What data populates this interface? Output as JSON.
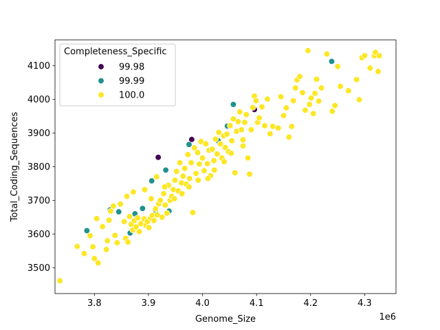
{
  "chart_data": {
    "type": "scatter",
    "xlabel": "Genome_Size",
    "ylabel": "Total_Coding_Sequences",
    "x_offset_text": "1e6",
    "xlim": [
      3.727,
      4.358
    ],
    "ylim": [
      3423,
      4177
    ],
    "x_ticks": [
      3.8,
      3.9,
      4.0,
      4.1,
      4.2,
      4.3
    ],
    "x_tick_labels": [
      "3.8",
      "3.9",
      "4.0",
      "4.1",
      "4.2",
      "4.3"
    ],
    "y_ticks": [
      3500,
      3600,
      3700,
      3800,
      3900,
      4000,
      4100
    ],
    "y_tick_labels": [
      "3500",
      "3600",
      "3700",
      "3800",
      "3900",
      "4000",
      "4100"
    ],
    "grid": false,
    "legend": {
      "title": "Completeness_Specific",
      "placement": "top-left",
      "entries": [
        {
          "label": "99.98",
          "color": "#440154"
        },
        {
          "label": "99.99",
          "color": "#21918c"
        },
        {
          "label": "100.0",
          "color": "#fde725"
        }
      ]
    },
    "series": [
      {
        "name": "99.98",
        "color": "#440154",
        "points": [
          [
            3.918,
            3828
          ],
          [
            3.98,
            3881
          ],
          [
            4.096,
            3970
          ]
        ]
      },
      {
        "name": "99.99",
        "color": "#21918c",
        "points": [
          [
            3.786,
            3610
          ],
          [
            3.829,
            3672
          ],
          [
            3.845,
            3666
          ],
          [
            3.866,
            3603
          ],
          [
            3.875,
            3660
          ],
          [
            3.889,
            3676
          ],
          [
            3.906,
            3758
          ],
          [
            3.913,
            3671
          ],
          [
            3.932,
            3790
          ],
          [
            3.938,
            3668
          ],
          [
            3.975,
            3866
          ],
          [
            4.029,
            3877
          ],
          [
            4.041,
            3857
          ],
          [
            4.046,
            3921
          ],
          [
            4.057,
            3985
          ],
          [
            4.239,
            4113
          ]
        ]
      },
      {
        "name": "100.0",
        "color": "#fde725",
        "points": [
          [
            3.736,
            3461
          ],
          [
            3.768,
            3563
          ],
          [
            3.781,
            3542
          ],
          [
            3.792,
            3595
          ],
          [
            3.797,
            3562
          ],
          [
            3.8,
            3527
          ],
          [
            3.807,
            3514
          ],
          [
            3.804,
            3646
          ],
          [
            3.815,
            3622
          ],
          [
            3.822,
            3554
          ],
          [
            3.824,
            3580
          ],
          [
            3.827,
            3641
          ],
          [
            3.83,
            3668
          ],
          [
            3.835,
            3683
          ],
          [
            3.838,
            3596
          ],
          [
            3.842,
            3574
          ],
          [
            3.848,
            3689
          ],
          [
            3.855,
            3637
          ],
          [
            3.858,
            3587
          ],
          [
            3.862,
            3576
          ],
          [
            3.865,
            3652
          ],
          [
            3.868,
            3629
          ],
          [
            3.871,
            3612
          ],
          [
            3.874,
            3640
          ],
          [
            3.877,
            3621
          ],
          [
            3.88,
            3648
          ],
          [
            3.883,
            3607
          ],
          [
            3.886,
            3631
          ],
          [
            3.892,
            3645
          ],
          [
            3.895,
            3626
          ],
          [
            3.898,
            3637
          ],
          [
            3.901,
            3619
          ],
          [
            3.904,
            3648
          ],
          [
            3.907,
            3655
          ],
          [
            3.91,
            3640
          ],
          [
            3.913,
            3675
          ],
          [
            3.916,
            3657
          ],
          [
            3.919,
            3690
          ],
          [
            3.922,
            3700
          ],
          [
            3.925,
            3650
          ],
          [
            3.928,
            3720
          ],
          [
            3.931,
            3686
          ],
          [
            3.934,
            3662
          ],
          [
            3.937,
            3745
          ],
          [
            3.94,
            3700
          ],
          [
            3.943,
            3712
          ],
          [
            3.946,
            3732
          ],
          [
            3.949,
            3760
          ],
          [
            3.952,
            3786
          ],
          [
            3.955,
            3728
          ],
          [
            3.958,
            3812
          ],
          [
            3.961,
            3752
          ],
          [
            3.964,
            3772
          ],
          [
            3.967,
            3795
          ],
          [
            3.97,
            3748
          ],
          [
            3.973,
            3836
          ],
          [
            3.976,
            3765
          ],
          [
            3.979,
            3812
          ],
          [
            3.982,
            3664
          ],
          [
            3.985,
            3856
          ],
          [
            3.988,
            3780
          ],
          [
            3.991,
            3842
          ],
          [
            3.994,
            3808
          ],
          [
            3.997,
            3875
          ],
          [
            4.0,
            3826
          ],
          [
            4.003,
            3788
          ],
          [
            4.006,
            3868
          ],
          [
            4.009,
            3809
          ],
          [
            4.012,
            3849
          ],
          [
            4.015,
            3773
          ],
          [
            4.018,
            3852
          ],
          [
            4.021,
            3818
          ],
          [
            4.024,
            3882
          ],
          [
            4.027,
            3838
          ],
          [
            4.03,
            3902
          ],
          [
            4.033,
            3868
          ],
          [
            4.036,
            3826
          ],
          [
            4.039,
            3892
          ],
          [
            4.042,
            3857
          ],
          [
            4.045,
            3897
          ],
          [
            4.048,
            3845
          ],
          [
            4.051,
            3922
          ],
          [
            4.054,
            3877
          ],
          [
            4.057,
            3942
          ],
          [
            4.06,
            3782
          ],
          [
            4.063,
            3905
          ],
          [
            4.066,
            3934
          ],
          [
            4.069,
            3963
          ],
          [
            4.072,
            3910
          ],
          [
            4.075,
            3880
          ],
          [
            4.078,
            3932
          ],
          [
            4.081,
            3955
          ],
          [
            4.084,
            3826
          ],
          [
            4.087,
            3778
          ],
          [
            4.09,
            3910
          ],
          [
            4.093,
            3976
          ],
          [
            4.096,
            4010
          ],
          [
            4.099,
            3996
          ],
          [
            4.102,
            3932
          ],
          [
            4.105,
            3945
          ],
          [
            4.11,
            3978
          ],
          [
            4.115,
            3922
          ],
          [
            4.12,
            4001
          ],
          [
            4.125,
            3898
          ],
          [
            4.13,
            3920
          ],
          [
            4.14,
            3915
          ],
          [
            4.145,
            4008
          ],
          [
            4.15,
            3952
          ],
          [
            4.155,
            3975
          ],
          [
            4.16,
            3888
          ],
          [
            4.165,
            3920
          ],
          [
            4.168,
            3996
          ],
          [
            4.172,
            4034
          ],
          [
            4.175,
            4058
          ],
          [
            4.18,
            4068
          ],
          [
            4.185,
            4020
          ],
          [
            4.19,
            3968
          ],
          [
            4.195,
            4145
          ],
          [
            4.198,
            3985
          ],
          [
            4.201,
            4004
          ],
          [
            4.205,
            3958
          ],
          [
            4.208,
            4018
          ],
          [
            4.211,
            4060
          ],
          [
            4.215,
            3995
          ],
          [
            4.22,
            4034
          ],
          [
            4.23,
            4135
          ],
          [
            4.24,
            3965
          ],
          [
            4.245,
            3982
          ],
          [
            4.25,
            4098
          ],
          [
            4.255,
            4039
          ],
          [
            4.27,
            4026
          ],
          [
            4.285,
            4059
          ],
          [
            4.29,
            3999
          ],
          [
            4.295,
            4124
          ],
          [
            4.3,
            4130
          ],
          [
            4.31,
            4093
          ],
          [
            4.318,
            4130
          ],
          [
            4.32,
            4140
          ],
          [
            4.325,
            4083
          ],
          [
            4.327,
            4130
          ],
          [
            3.86,
            3712
          ],
          [
            3.872,
            3725
          ],
          [
            3.893,
            3732
          ],
          [
            3.905,
            3705
          ],
          [
            3.915,
            3770
          ],
          [
            3.93,
            3740
          ],
          [
            3.948,
            3705
          ],
          [
            3.962,
            3720
          ],
          [
            3.975,
            3740
          ],
          [
            3.992,
            3760
          ],
          [
            4.01,
            3765
          ],
          [
            4.022,
            3790
          ],
          [
            4.04,
            3815
          ],
          [
            4.053,
            3840
          ],
          [
            4.075,
            3862
          ]
        ]
      }
    ]
  }
}
